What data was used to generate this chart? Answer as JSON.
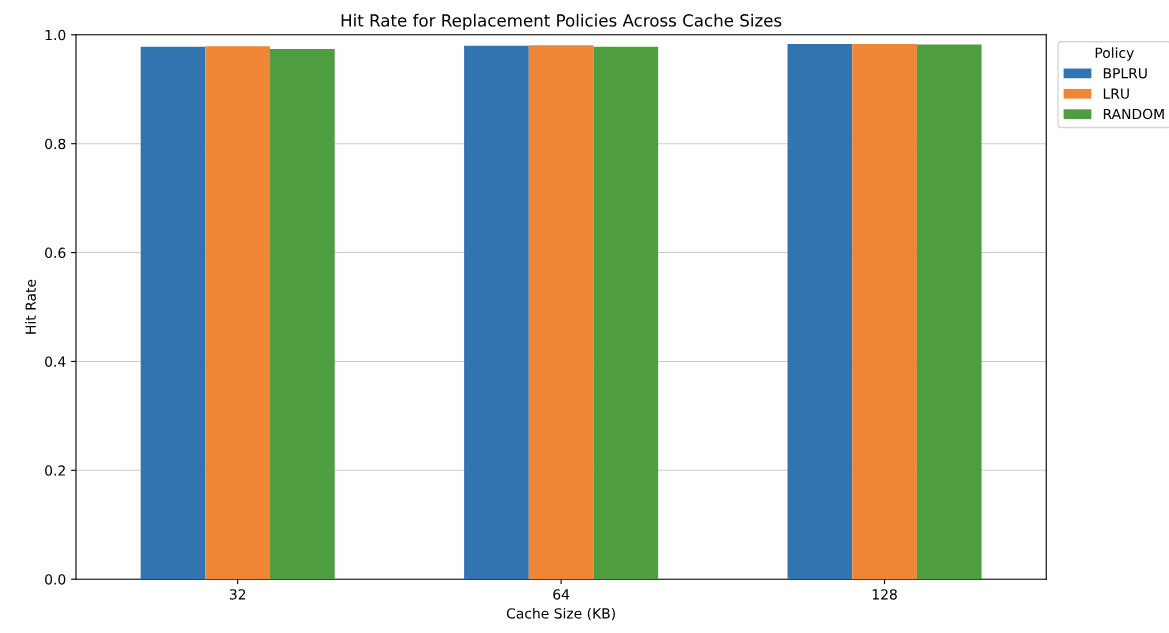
{
  "chart_data": {
    "type": "bar",
    "title": "Hit Rate for Replacement Policies Across Cache Sizes",
    "xlabel": "Cache Size (KB)",
    "ylabel": "Hit Rate",
    "categories": [
      "32",
      "64",
      "128"
    ],
    "series": [
      {
        "name": "BPLRU",
        "color": "#3274b0",
        "values": [
          0.978,
          0.98,
          0.983
        ]
      },
      {
        "name": "LRU",
        "color": "#ef8636",
        "values": [
          0.979,
          0.981,
          0.983
        ]
      },
      {
        "name": "RANDOM",
        "color": "#4e9d41",
        "values": [
          0.974,
          0.978,
          0.982
        ]
      }
    ],
    "legend_title": "Policy",
    "legend": "top right",
    "ylim": [
      0,
      1.0
    ],
    "yticks": [
      {
        "value": 0,
        "label": "0.0"
      },
      0.2,
      0.4,
      0.6,
      0.8,
      {
        "value": 1.0,
        "label": "1.0"
      }
    ],
    "grid": "y"
  }
}
